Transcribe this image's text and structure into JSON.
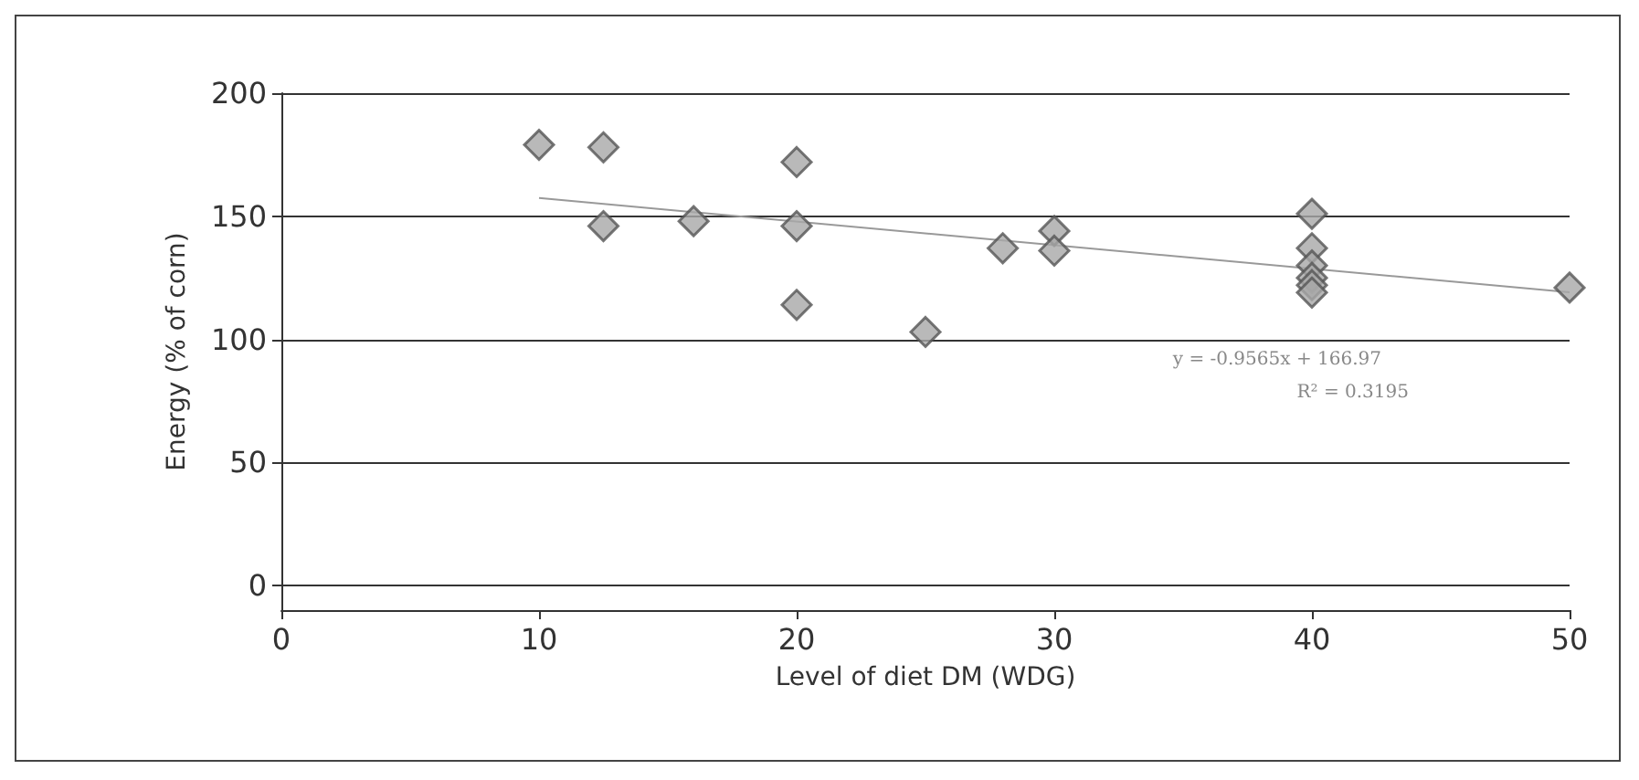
{
  "chart_data": {
    "type": "scatter",
    "xlabel": "Level of diet DM (WDG)",
    "ylabel": "Energy (% of corn)",
    "grid": "y",
    "xlim": [
      0,
      50
    ],
    "xticks": [
      0,
      10,
      20,
      30,
      40,
      50
    ],
    "ylim": [
      -10,
      200
    ],
    "yticks": [
      0,
      50,
      100,
      150,
      200
    ],
    "series": [
      {
        "color": "#a8a8a8",
        "marker": "diamond",
        "x": [
          10,
          12.5,
          12.5,
          16,
          20,
          20,
          20,
          25,
          28,
          30,
          30,
          40,
          40,
          40,
          40,
          40,
          40,
          50
        ],
        "values": [
          179,
          178,
          146,
          148,
          172,
          146,
          114,
          103,
          137,
          144,
          136,
          151,
          137,
          130,
          125,
          122,
          119,
          121
        ]
      },
      {
        "type": "line",
        "color": "#999999",
        "x": [
          10,
          50
        ],
        "values": [
          157.4,
          119.1
        ]
      }
    ],
    "annotations": [
      "y = -0.9565x + 166.97",
      "R² = 0.3195"
    ]
  }
}
